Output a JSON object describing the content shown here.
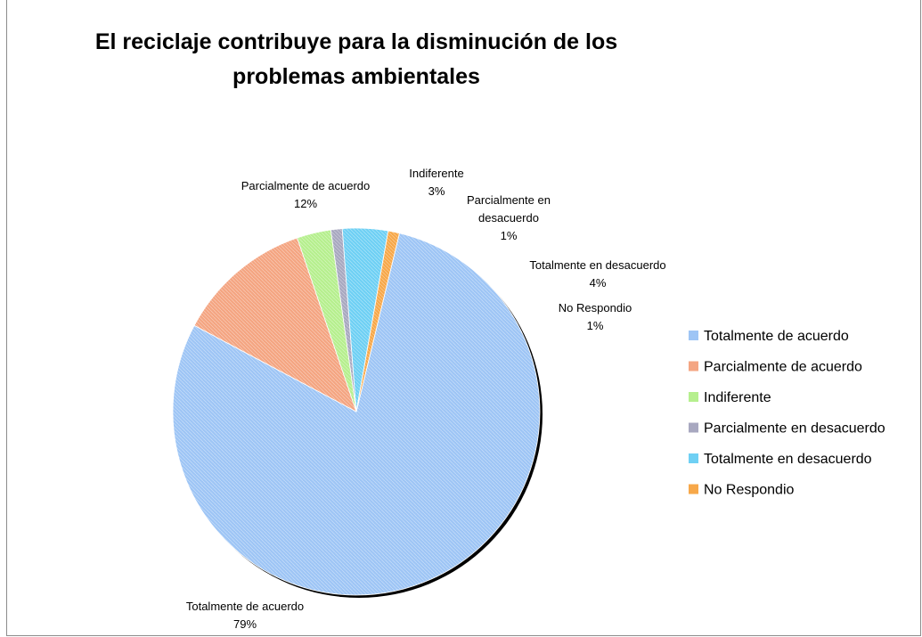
{
  "chart_data": {
    "type": "pie",
    "title_line1": "El reciclaje contribuye para la disminución de los",
    "title_line2": "problemas ambientales",
    "legend_position": "right",
    "slices": [
      {
        "label": "Totalmente de acuerdo",
        "value": 79,
        "pct": "79%",
        "color": "#9ec5f5"
      },
      {
        "label": "Parcialmente de acuerdo",
        "value": 12,
        "pct": "12%",
        "color": "#f4a582"
      },
      {
        "label": "Indiferente",
        "value": 3,
        "pct": "3%",
        "color": "#b6ef8e"
      },
      {
        "label": "Parcialmente en desacuerdo",
        "value": 1,
        "pct": "1%",
        "color": "#a8a8c0"
      },
      {
        "label": "Totalmente en desacuerdo",
        "value": 4,
        "pct": "4%",
        "color": "#6fd0f4"
      },
      {
        "label": "No Respondio",
        "value": 1,
        "pct": "1%",
        "color": "#f7a84a"
      }
    ]
  }
}
